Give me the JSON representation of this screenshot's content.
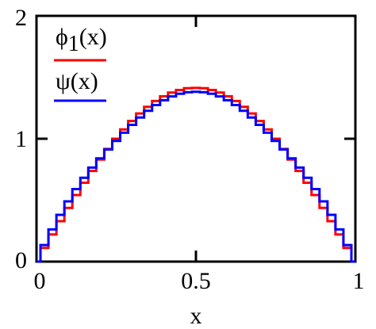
{
  "chart_data": {
    "type": "line",
    "xlabel": "x",
    "ylabel": "",
    "xlim": [
      0,
      1
    ],
    "ylim": [
      0,
      2
    ],
    "x_ticks": [
      "0",
      "0.5",
      "1"
    ],
    "y_ticks": [
      "0",
      "1",
      "2"
    ],
    "grid": false,
    "legend_position": "top-left",
    "series": [
      {
        "name": "ϕ1(x)",
        "name_base": "ϕ",
        "name_sub": "1",
        "name_arg": "(x)",
        "color": "#ff0000",
        "x": [
          0,
          0.025,
          0.05,
          0.075,
          0.1,
          0.125,
          0.15,
          0.175,
          0.2,
          0.225,
          0.25,
          0.275,
          0.3,
          0.325,
          0.35,
          0.375,
          0.4,
          0.425,
          0.45,
          0.475,
          0.5,
          0.525,
          0.55,
          0.575,
          0.6,
          0.625,
          0.65,
          0.675,
          0.7,
          0.725,
          0.75,
          0.775,
          0.8,
          0.825,
          0.85,
          0.875,
          0.9,
          0.925,
          0.95,
          0.975,
          1
        ],
        "y": [
          0,
          0.111,
          0.221,
          0.329,
          0.437,
          0.542,
          0.642,
          0.738,
          0.831,
          0.917,
          1.0,
          1.076,
          1.144,
          1.206,
          1.26,
          1.307,
          1.345,
          1.376,
          1.397,
          1.411,
          1.414,
          1.411,
          1.397,
          1.376,
          1.345,
          1.307,
          1.26,
          1.206,
          1.144,
          1.076,
          1.0,
          0.917,
          0.831,
          0.738,
          0.642,
          0.542,
          0.437,
          0.329,
          0.221,
          0.111,
          0
        ]
      },
      {
        "name": "ψ(x)",
        "color": "#0000ff",
        "x": [
          0,
          0.025,
          0.05,
          0.075,
          0.1,
          0.125,
          0.15,
          0.175,
          0.2,
          0.225,
          0.25,
          0.275,
          0.3,
          0.325,
          0.35,
          0.375,
          0.4,
          0.425,
          0.45,
          0.475,
          0.5,
          0.525,
          0.55,
          0.575,
          0.6,
          0.625,
          0.65,
          0.675,
          0.7,
          0.725,
          0.75,
          0.775,
          0.8,
          0.825,
          0.85,
          0.875,
          0.9,
          0.925,
          0.95,
          0.975,
          1
        ],
        "y": [
          0,
          0.135,
          0.262,
          0.381,
          0.49,
          0.59,
          0.682,
          0.765,
          0.84,
          0.912,
          0.982,
          1.049,
          1.113,
          1.173,
          1.227,
          1.274,
          1.313,
          1.344,
          1.366,
          1.378,
          1.382,
          1.378,
          1.366,
          1.344,
          1.313,
          1.274,
          1.227,
          1.173,
          1.113,
          1.049,
          0.982,
          0.912,
          0.84,
          0.765,
          0.682,
          0.59,
          0.49,
          0.381,
          0.262,
          0.135,
          0
        ]
      }
    ]
  }
}
